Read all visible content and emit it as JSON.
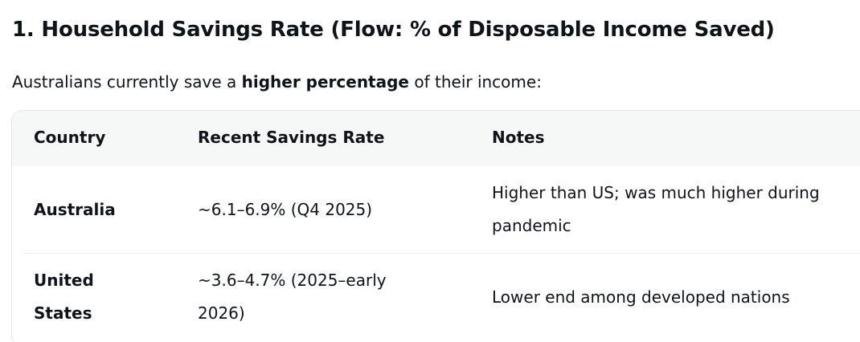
{
  "heading": "1. Household Savings Rate (Flow: % of Disposable Income Saved)",
  "intro": {
    "before": "Australians currently save a ",
    "bold": "higher percentage",
    "after": " of their income:"
  },
  "table": {
    "headers": [
      "Country",
      "Recent Savings Rate",
      "Notes"
    ],
    "rows": [
      {
        "country_lines": [
          "Australia"
        ],
        "rate_lines": [
          "~6.1–6.9% (Q4 2025)"
        ],
        "notes_lines": [
          "Higher than US; was much higher during",
          "pandemic"
        ]
      },
      {
        "country_lines": [
          "United",
          "States"
        ],
        "rate_lines": [
          "~3.6–4.7% (2025–early",
          "2026)"
        ],
        "notes_lines": [
          "Lower end among developed nations"
        ]
      }
    ]
  }
}
